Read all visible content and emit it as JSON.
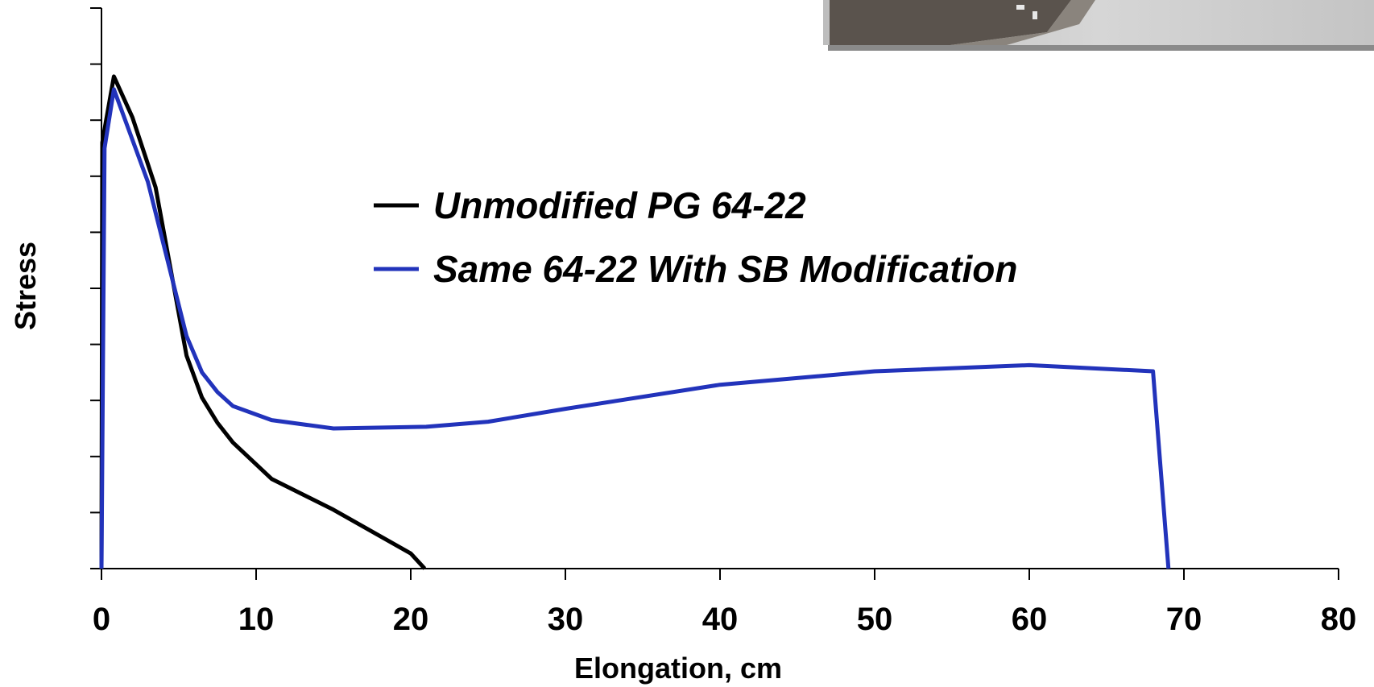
{
  "chart_data": {
    "type": "line",
    "xlabel": "Elongation, cm",
    "ylabel": "Stress",
    "xlim": [
      0,
      80
    ],
    "ylim": [
      0,
      10
    ],
    "x_ticks": [
      0,
      10,
      20,
      30,
      40,
      50,
      60,
      70,
      80
    ],
    "y_tick_count": 10,
    "y_tick_labels_shown": false,
    "legend_position": "upper-center",
    "grid": false,
    "series": [
      {
        "name": "Unmodified PG 64-22",
        "color": "#000000",
        "points": [
          [
            0,
            0
          ],
          [
            0.05,
            7.6
          ],
          [
            0.3,
            8.0
          ],
          [
            0.8,
            8.78
          ],
          [
            2,
            8.05
          ],
          [
            3.5,
            6.8
          ],
          [
            5.5,
            3.8
          ],
          [
            6.5,
            3.05
          ],
          [
            7.5,
            2.6
          ],
          [
            8.5,
            2.25
          ],
          [
            11,
            1.6
          ],
          [
            15,
            1.05
          ],
          [
            20,
            0.27
          ],
          [
            20.9,
            0
          ]
        ]
      },
      {
        "name": "Same 64-22 With SB Modification",
        "color": "#2233bb",
        "points": [
          [
            0,
            0
          ],
          [
            0.2,
            7.5
          ],
          [
            0.8,
            8.55
          ],
          [
            3,
            6.9
          ],
          [
            5.5,
            4.15
          ],
          [
            6.5,
            3.5
          ],
          [
            7.5,
            3.15
          ],
          [
            8.5,
            2.9
          ],
          [
            11,
            2.65
          ],
          [
            15,
            2.5
          ],
          [
            21,
            2.53
          ],
          [
            25,
            2.62
          ],
          [
            30,
            2.85
          ],
          [
            40,
            3.28
          ],
          [
            50,
            3.52
          ],
          [
            60,
            3.63
          ],
          [
            68,
            3.52
          ],
          [
            69,
            0
          ]
        ]
      }
    ]
  },
  "inset_photo": {
    "description_icon": "specimen-photo",
    "colors": [
      "#5a5550",
      "#8a8580",
      "#c8c8c8"
    ]
  }
}
